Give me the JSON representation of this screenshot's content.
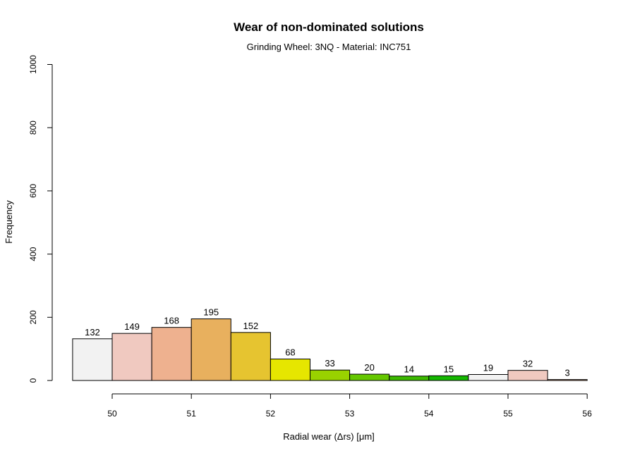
{
  "chart_data": {
    "type": "bar",
    "title": "Wear of non-dominated solutions",
    "subtitle": "Grinding Wheel: 3NQ - Material: INC751",
    "xlabel": "Radial wear (Δrs) [μm]",
    "ylabel": "Frequency",
    "xlim": [
      50,
      56
    ],
    "ylim": [
      0,
      1000
    ],
    "x_ticks": [
      "50",
      "51",
      "52",
      "53",
      "54",
      "55",
      "56"
    ],
    "y_ticks": [
      "0",
      "200",
      "400",
      "600",
      "800",
      "1000"
    ],
    "bin_edges": [
      49.5,
      50.0,
      50.5,
      51.0,
      51.5,
      52.0,
      52.5,
      53.0,
      53.5,
      54.0,
      54.5,
      55.0,
      55.5,
      56.0
    ],
    "values": [
      132,
      149,
      168,
      195,
      152,
      68,
      33,
      20,
      14,
      15,
      19,
      32,
      3
    ],
    "colors": [
      "#f2f2f2",
      "#f0c9c0",
      "#eeb18f",
      "#e8b05e",
      "#e6c430",
      "#e6e600",
      "#99d200",
      "#65c700",
      "#3cba00",
      "#14b700",
      "#f2f2f2",
      "#f0c9c0",
      "#eeb18f"
    ],
    "grid": false,
    "legend": "none"
  }
}
